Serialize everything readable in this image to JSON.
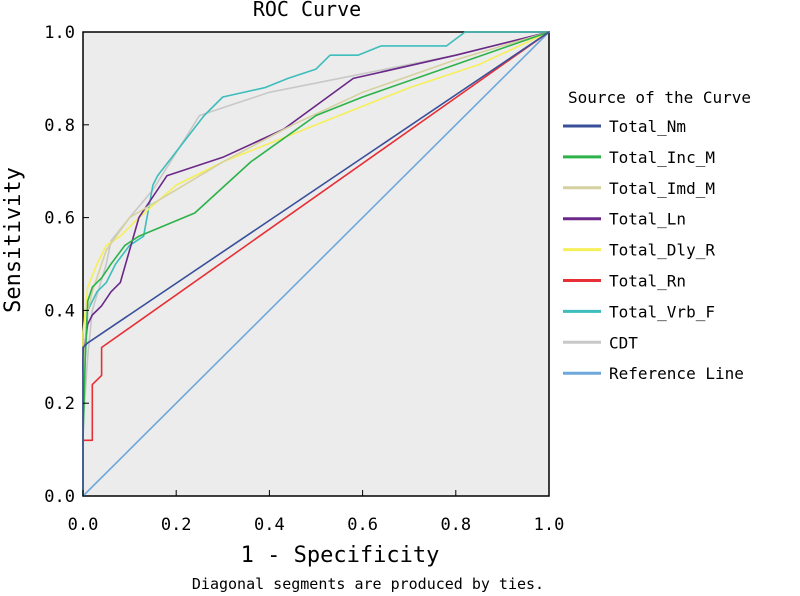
{
  "chart_data": {
    "type": "line",
    "title": "ROC Curve",
    "xlabel": "1 - Specificity",
    "ylabel": "Sensitivity",
    "footnote": "Diagonal segments are produced by ties.",
    "xlim": [
      0,
      1
    ],
    "ylim": [
      0,
      1
    ],
    "x_ticks": [
      "0.0",
      "0.2",
      "0.4",
      "0.6",
      "0.8",
      "1.0"
    ],
    "y_ticks": [
      "0.0",
      "0.2",
      "0.4",
      "0.6",
      "0.8",
      "1.0"
    ],
    "legend_title": "Source of the Curve",
    "legend_position": "right",
    "plot_background": "#ececec",
    "series": [
      {
        "name": "Total_Nm",
        "color": "#3a4f9a",
        "x": [
          0,
          0,
          0.01,
          1
        ],
        "y": [
          0,
          0.32,
          0.33,
          1
        ]
      },
      {
        "name": "Total_Inc_M",
        "color": "#2db24a",
        "x": [
          0,
          0,
          0.005,
          0.01,
          0.02,
          0.04,
          0.06,
          0.09,
          0.12,
          0.24,
          0.36,
          0.5,
          0.6,
          0.8,
          1
        ],
        "y": [
          0,
          0.12,
          0.3,
          0.42,
          0.45,
          0.47,
          0.5,
          0.54,
          0.56,
          0.61,
          0.72,
          0.82,
          0.86,
          0.93,
          1
        ]
      },
      {
        "name": "Total_Imd_M",
        "color": "#d6d1a0",
        "x": [
          0,
          0,
          0.01,
          0.02,
          0.05,
          0.1,
          0.2,
          0.3,
          0.45,
          0.6,
          0.8,
          1
        ],
        "y": [
          0,
          0.26,
          0.4,
          0.44,
          0.53,
          0.6,
          0.66,
          0.72,
          0.8,
          0.87,
          0.94,
          1
        ]
      },
      {
        "name": "Total_Ln",
        "color": "#6a2888",
        "x": [
          0,
          0,
          0.01,
          0.02,
          0.04,
          0.06,
          0.08,
          0.12,
          0.18,
          0.3,
          0.43,
          0.58,
          0.8,
          1
        ],
        "y": [
          0,
          0.3,
          0.37,
          0.39,
          0.41,
          0.44,
          0.46,
          0.6,
          0.69,
          0.73,
          0.79,
          0.9,
          0.95,
          1
        ]
      },
      {
        "name": "Total_Dly_R",
        "color": "#f5ef5a",
        "x": [
          0,
          0,
          0.01,
          0.03,
          0.05,
          0.08,
          0.12,
          0.2,
          0.3,
          0.45,
          0.55,
          0.7,
          0.85,
          1
        ],
        "y": [
          0,
          0.35,
          0.45,
          0.5,
          0.54,
          0.56,
          0.6,
          0.67,
          0.72,
          0.78,
          0.82,
          0.88,
          0.93,
          1
        ]
      },
      {
        "name": "Total_Rn",
        "color": "#e63036",
        "x": [
          0,
          0,
          0.02,
          0.02,
          0.04,
          0.04,
          1
        ],
        "y": [
          0,
          0.12,
          0.12,
          0.24,
          0.26,
          0.32,
          1
        ]
      },
      {
        "name": "Total_Vrb_F",
        "color": "#3dbdbb",
        "x": [
          0,
          0,
          0.01,
          0.03,
          0.05,
          0.07,
          0.1,
          0.13,
          0.15,
          0.16,
          0.26,
          0.3,
          0.39,
          0.44,
          0.5,
          0.53,
          0.59,
          0.64,
          0.78,
          0.82,
          1
        ],
        "y": [
          0,
          0.2,
          0.4,
          0.44,
          0.46,
          0.5,
          0.54,
          0.56,
          0.67,
          0.69,
          0.82,
          0.86,
          0.88,
          0.9,
          0.92,
          0.95,
          0.95,
          0.97,
          0.97,
          1,
          1
        ]
      },
      {
        "name": "CDT",
        "color": "#c8c8c8",
        "x": [
          0,
          0,
          0.01,
          0.02,
          0.05,
          0.06,
          0.1,
          0.15,
          0.25,
          0.4,
          0.6,
          0.8,
          1
        ],
        "y": [
          0,
          0.15,
          0.3,
          0.4,
          0.5,
          0.55,
          0.6,
          0.66,
          0.82,
          0.87,
          0.91,
          0.95,
          1
        ]
      },
      {
        "name": "Reference Line",
        "color": "#6fa8dc",
        "x": [
          0,
          1
        ],
        "y": [
          0,
          1
        ]
      }
    ]
  }
}
